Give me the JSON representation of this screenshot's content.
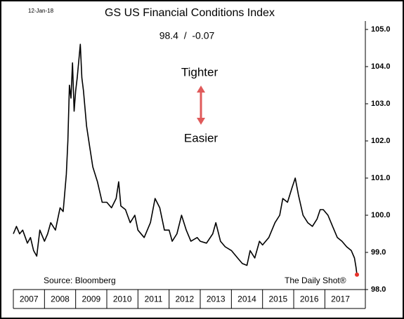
{
  "chart_data": {
    "type": "line",
    "title": "GS US Financial Conditions Index",
    "subtitle": "98.4  /  -0.07",
    "date_label": "12-Jan-18",
    "annotations": {
      "up": "Tighter",
      "down": "Easier",
      "source": "Source: Bloomberg",
      "credit": "The Daily Shot®"
    },
    "x": [
      2007.0,
      2007.1,
      2007.2,
      2007.3,
      2007.45,
      2007.55,
      2007.65,
      2007.75,
      2007.85,
      2008.0,
      2008.1,
      2008.2,
      2008.35,
      2008.5,
      2008.6,
      2008.7,
      2008.75,
      2008.8,
      2008.85,
      2008.9,
      2008.95,
      2009.0,
      2009.05,
      2009.15,
      2009.2,
      2009.25,
      2009.35,
      2009.45,
      2009.55,
      2009.7,
      2009.85,
      2010.0,
      2010.15,
      2010.3,
      2010.38,
      2010.45,
      2010.6,
      2010.75,
      2010.9,
      2011.0,
      2011.2,
      2011.4,
      2011.55,
      2011.7,
      2011.85,
      2012.0,
      2012.1,
      2012.25,
      2012.4,
      2012.55,
      2012.7,
      2012.9,
      2013.0,
      2013.2,
      2013.4,
      2013.5,
      2013.65,
      2013.8,
      2014.0,
      2014.2,
      2014.35,
      2014.5,
      2014.6,
      2014.75,
      2014.9,
      2015.0,
      2015.2,
      2015.4,
      2015.55,
      2015.65,
      2015.8,
      2015.95,
      2016.05,
      2016.15,
      2016.3,
      2016.45,
      2016.6,
      2016.75,
      2016.85,
      2016.95,
      2017.1,
      2017.25,
      2017.4,
      2017.55,
      2017.7,
      2017.85,
      2017.95,
      2018.0,
      2018.03
    ],
    "series": [
      {
        "name": "GS US Financial Conditions Index",
        "color": "#000000",
        "values": [
          99.5,
          99.7,
          99.5,
          99.6,
          99.25,
          99.4,
          99.05,
          98.9,
          99.6,
          99.3,
          99.5,
          99.8,
          99.6,
          100.2,
          100.1,
          101.1,
          102.0,
          103.5,
          103.15,
          104.1,
          102.8,
          103.35,
          103.7,
          104.6,
          103.7,
          103.35,
          102.4,
          101.85,
          101.3,
          100.9,
          100.35,
          100.35,
          100.2,
          100.45,
          100.9,
          100.25,
          100.15,
          99.8,
          100.0,
          99.6,
          99.4,
          99.8,
          100.45,
          100.2,
          99.6,
          99.6,
          99.3,
          99.5,
          100.0,
          99.6,
          99.3,
          99.4,
          99.3,
          99.25,
          99.5,
          99.8,
          99.3,
          99.15,
          99.05,
          98.85,
          98.7,
          98.65,
          99.05,
          98.85,
          99.3,
          99.2,
          99.4,
          99.8,
          100.0,
          100.45,
          100.35,
          100.75,
          101.0,
          100.55,
          100.0,
          99.8,
          99.7,
          99.9,
          100.15,
          100.15,
          100.0,
          99.7,
          99.4,
          99.3,
          99.15,
          99.05,
          98.85,
          98.6,
          98.4
        ]
      }
    ],
    "last_point_color": "#e8322b",
    "arrow_color": "#e05a5a",
    "xlim": [
      2007.0,
      2018.3
    ],
    "xticks": [
      {
        "value": 2007,
        "label": "2007"
      },
      {
        "value": 2008,
        "label": "2008"
      },
      {
        "value": 2009,
        "label": "2009"
      },
      {
        "value": 2010,
        "label": "2010"
      },
      {
        "value": 2011,
        "label": "2011"
      },
      {
        "value": 2012,
        "label": "2012"
      },
      {
        "value": 2013,
        "label": "2013"
      },
      {
        "value": 2014,
        "label": "2014"
      },
      {
        "value": 2015,
        "label": "2015"
      },
      {
        "value": 2016,
        "label": "2016"
      },
      {
        "value": 2017,
        "label": "2017"
      }
    ],
    "ylim": [
      98.0,
      105.0
    ],
    "yticks": [
      {
        "value": 98,
        "label": "98.0"
      },
      {
        "value": 99,
        "label": "99.0"
      },
      {
        "value": 100,
        "label": "100.0"
      },
      {
        "value": 101,
        "label": "101.0"
      },
      {
        "value": 102,
        "label": "102.0"
      },
      {
        "value": 103,
        "label": "103.0"
      },
      {
        "value": 104,
        "label": "104.0"
      },
      {
        "value": 105,
        "label": "105.0"
      }
    ]
  }
}
